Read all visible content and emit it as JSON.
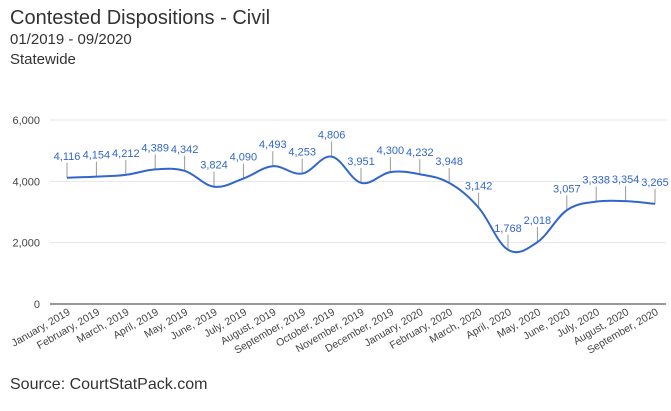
{
  "header": {
    "title": "Contested Dispositions - Civil",
    "date_range": "01/2019 - 09/2020",
    "scope": "Statewide"
  },
  "footer": {
    "source": "Source: CourtStatPack.com"
  },
  "colors": {
    "series": "#3366cc",
    "grid": "#e6e6e6",
    "axis": "#333333",
    "label_text": "#3366cc",
    "tick_text": "#444444"
  },
  "chart_data": {
    "type": "line",
    "title": "Contested Dispositions - Civil",
    "xlabel": "",
    "ylabel": "",
    "ylim": [
      0,
      6000
    ],
    "y_ticks": [
      0,
      2000,
      4000,
      6000
    ],
    "y_tick_labels": [
      "0",
      "2,000",
      "4,000",
      "6,000"
    ],
    "grid": true,
    "legend": "none",
    "categories": [
      "January, 2019",
      "February, 2019",
      "March, 2019",
      "April, 2019",
      "May, 2019",
      "June, 2019",
      "July, 2019",
      "August, 2019",
      "September, 2019",
      "October, 2019",
      "November, 2019",
      "December, 2019",
      "January, 2020",
      "February, 2020",
      "March, 2020",
      "April, 2020",
      "May, 2020",
      "June, 2020",
      "July, 2020",
      "August, 2020",
      "September, 2020"
    ],
    "series": [
      {
        "name": "Contested Dispositions",
        "values": [
          4116,
          4154,
          4212,
          4389,
          4342,
          3824,
          4090,
          4493,
          4253,
          4806,
          3951,
          4300,
          4232,
          3948,
          3142,
          1768,
          2018,
          3057,
          3338,
          3354,
          3265
        ],
        "labels": [
          "4,116",
          "4,154",
          "4,212",
          "4,389",
          "4,342",
          "3,824",
          "4,090",
          "4,493",
          "4,253",
          "4,806",
          "3,951",
          "4,300",
          "4,232",
          "3,948",
          "3,142",
          "1,768",
          "2,018",
          "3,057",
          "3,338",
          "3,354",
          "3,265"
        ]
      }
    ]
  }
}
